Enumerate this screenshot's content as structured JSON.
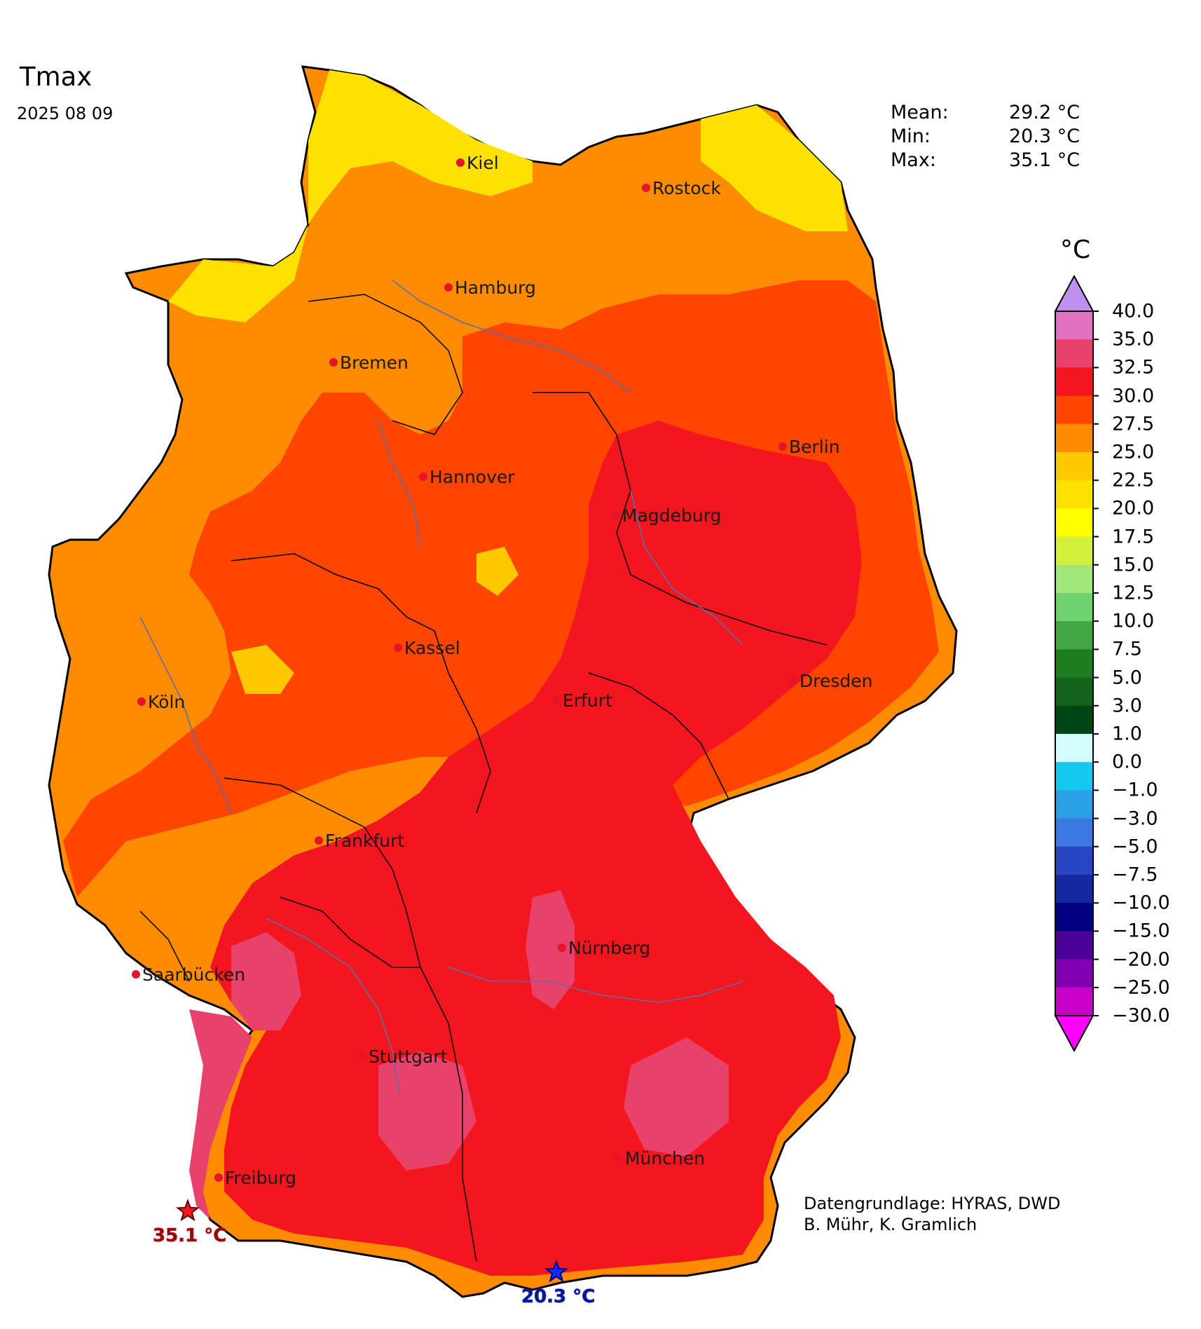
{
  "header": {
    "title": "Tmax",
    "date": "2025 08 09"
  },
  "stats": [
    {
      "label": "Mean:",
      "value": "29.2 °C"
    },
    {
      "label": "Min:",
      "value": "20.3 °C"
    },
    {
      "label": "Max:",
      "value": "35.1 °C"
    }
  ],
  "colorbar": {
    "unit": "°C",
    "levels": [
      "40.0",
      "35.0",
      "32.5",
      "30.0",
      "27.5",
      "25.0",
      "22.5",
      "20.0",
      "17.5",
      "15.0",
      "12.5",
      "10.0",
      "7.5",
      "5.0",
      "3.0",
      "1.0",
      "0.0",
      "−1.0",
      "−3.0",
      "−5.0",
      "−7.5",
      "−10.0",
      "−15.0",
      "−20.0",
      "−25.0",
      "−30.0"
    ],
    "colors": [
      "#e371c1",
      "#e8416a",
      "#f4161e",
      "#ff4500",
      "#ff8c00",
      "#ffc800",
      "#ffe100",
      "#ffff00",
      "#d2f03c",
      "#a0e678",
      "#6fd26e",
      "#42a642",
      "#1e7e1e",
      "#14641e",
      "#004614",
      "#d3fcfc",
      "#14c8f0",
      "#2aa0e6",
      "#3c78e1",
      "#2846c3",
      "#1428a0",
      "#000080",
      "#4b0096",
      "#8200b4",
      "#c800c8"
    ],
    "top_arrow_color": "#c090f0",
    "bottom_arrow_color": "#ff00ff"
  },
  "cities": [
    {
      "name": "Kiel",
      "label": "Kiel"
    },
    {
      "name": "Rostock",
      "label": "Rostock"
    },
    {
      "name": "Hamburg",
      "label": "Hamburg"
    },
    {
      "name": "Bremen",
      "label": "Bremen"
    },
    {
      "name": "Berlin",
      "label": "Berlin"
    },
    {
      "name": "Hannover",
      "label": "Hannover"
    },
    {
      "name": "Magdeburg",
      "label": "Magdeburg"
    },
    {
      "name": "Kassel",
      "label": "Kassel"
    },
    {
      "name": "Dresden",
      "label": "Dresden"
    },
    {
      "name": "Köln",
      "label": "Köln"
    },
    {
      "name": "Erfurt",
      "label": "Erfurt"
    },
    {
      "name": "Frankfurt",
      "label": "Frankfurt"
    },
    {
      "name": "Nürnberg",
      "label": "Nürnberg"
    },
    {
      "name": "Saarbücken",
      "label": "Saarbücken"
    },
    {
      "name": "Stuttgart",
      "label": "Stuttgart"
    },
    {
      "name": "München",
      "label": "München"
    },
    {
      "name": "Freiburg",
      "label": "Freiburg"
    }
  ],
  "extremes": {
    "max_label": "35.1 °C",
    "min_label": "20.3 °C"
  },
  "credits": {
    "line1": "Datengrundlage: HYRAS, DWD",
    "line2": " B. Mühr, K. Gramlich"
  }
}
